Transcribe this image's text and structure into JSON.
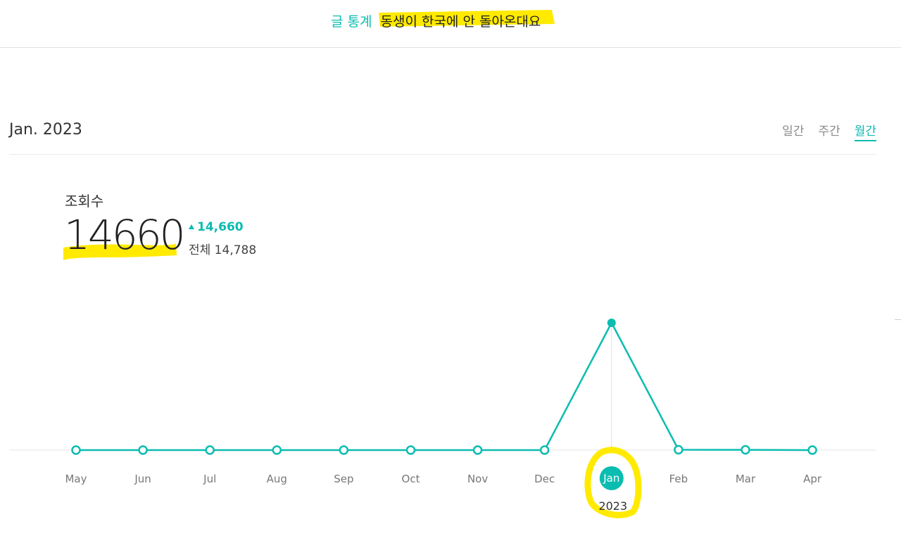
{
  "header": {
    "section_label": "글 통계",
    "post_title": "동생이 한국에 안 돌아온대요",
    "highlight_color": "#ffea00"
  },
  "period": {
    "label": "Jan. 2023",
    "tabs": [
      {
        "label": "일간",
        "active": false
      },
      {
        "label": "주간",
        "active": false
      },
      {
        "label": "월간",
        "active": true
      }
    ]
  },
  "metric": {
    "title": "조회수",
    "value": "14660",
    "delta": "14,660",
    "total": "전체 14,788"
  },
  "colors": {
    "accent": "#0bbcb0",
    "highlight": "#ffea00"
  },
  "chart_data": {
    "type": "line",
    "categories": [
      "May",
      "Jun",
      "Jul",
      "Aug",
      "Sep",
      "Oct",
      "Nov",
      "Dec",
      "Jan",
      "Feb",
      "Mar",
      "Apr"
    ],
    "values": [
      0,
      0,
      0,
      0,
      0,
      0,
      0,
      0,
      14660,
      40,
      30,
      0
    ],
    "selected_index": 8,
    "selected_label": "Jan",
    "selected_year": "2023",
    "ylim": [
      0,
      14660
    ],
    "grid": false,
    "title": "",
    "xlabel": "",
    "ylabel": ""
  }
}
